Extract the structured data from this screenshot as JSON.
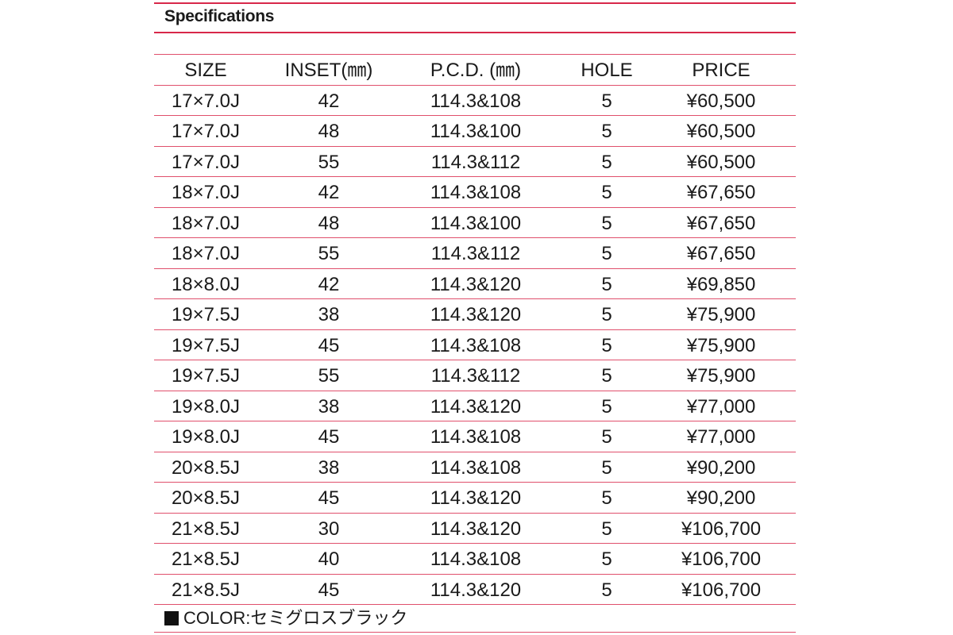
{
  "section": {
    "title": "Specifications"
  },
  "colors": {
    "accent_rule": "#d8284a",
    "row_rule": "#e0506c",
    "text": "#1a1a1a"
  },
  "table": {
    "headers": [
      "SIZE",
      "INSET(㎜)",
      "P.C.D. (㎜)",
      "HOLE",
      "PRICE"
    ],
    "rows": [
      [
        "17×7.0J",
        "42",
        "114.3&108",
        "5",
        "¥60,500"
      ],
      [
        "17×7.0J",
        "48",
        "114.3&100",
        "5",
        "¥60,500"
      ],
      [
        "17×7.0J",
        "55",
        "114.3&112",
        "5",
        "¥60,500"
      ],
      [
        "18×7.0J",
        "42",
        "114.3&108",
        "5",
        "¥67,650"
      ],
      [
        "18×7.0J",
        "48",
        "114.3&100",
        "5",
        "¥67,650"
      ],
      [
        "18×7.0J",
        "55",
        "114.3&112",
        "5",
        "¥67,650"
      ],
      [
        "18×8.0J",
        "42",
        "114.3&120",
        "5",
        "¥69,850"
      ],
      [
        "19×7.5J",
        "38",
        "114.3&120",
        "5",
        "¥75,900"
      ],
      [
        "19×7.5J",
        "45",
        "114.3&108",
        "5",
        "¥75,900"
      ],
      [
        "19×7.5J",
        "55",
        "114.3&112",
        "5",
        "¥75,900"
      ],
      [
        "19×8.0J",
        "38",
        "114.3&120",
        "5",
        "¥77,000"
      ],
      [
        "19×8.0J",
        "45",
        "114.3&108",
        "5",
        "¥77,000"
      ],
      [
        "20×8.5J",
        "38",
        "114.3&108",
        "5",
        "¥90,200"
      ],
      [
        "20×8.5J",
        "45",
        "114.3&120",
        "5",
        "¥90,200"
      ],
      [
        "21×8.5J",
        "30",
        "114.3&120",
        "5",
        "¥106,700"
      ],
      [
        "21×8.5J",
        "40",
        "114.3&108",
        "5",
        "¥106,700"
      ],
      [
        "21×8.5J",
        "45",
        "114.3&120",
        "5",
        "¥106,700"
      ]
    ]
  },
  "footer": {
    "color_note": "COLOR:セミグロスブラック",
    "swatch_icon": "black-square-icon"
  }
}
